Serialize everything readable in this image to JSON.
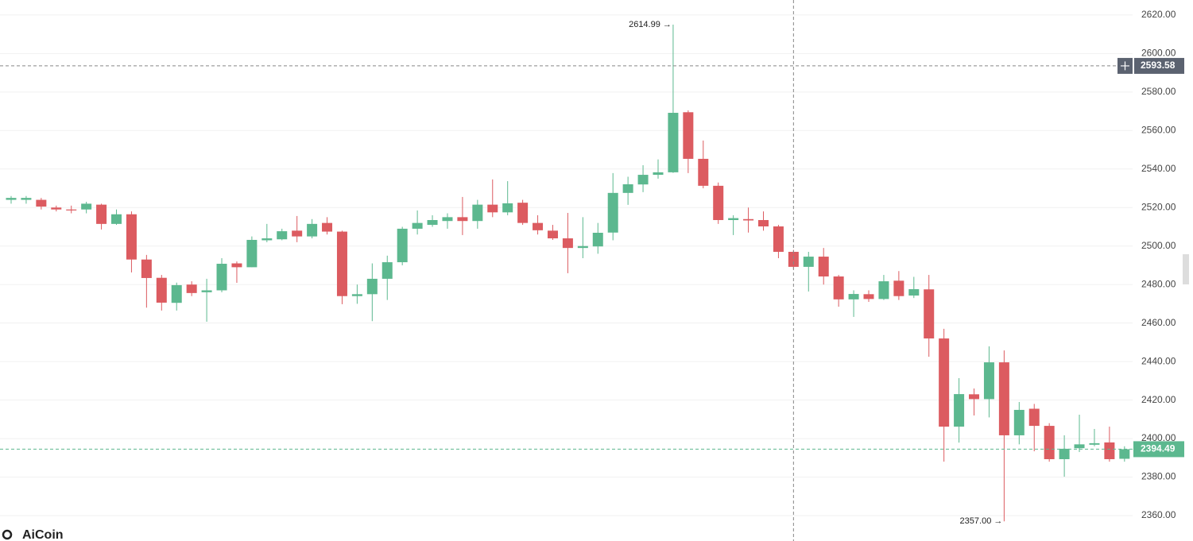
{
  "chart_data": {
    "type": "candlestick",
    "open": [
      2524,
      2524,
      2524,
      2520,
      2519,
      2519,
      2521.5,
      2511.5,
      2516.5,
      2493,
      2483.5,
      2470.5,
      2480,
      2476,
      2477,
      2491,
      2489,
      2503,
      2503.5,
      2508,
      2505,
      2512,
      2507.5,
      2474,
      2475,
      2483,
      2491.6,
      2509,
      2511,
      2513,
      2515,
      2513,
      2521.5,
      2517.5,
      2522.5,
      2512,
      2508,
      2504,
      2499,
      2499.8,
      2507,
      2527.6,
      2532,
      2537,
      2538.3,
      2569.5,
      2545.3,
      2531.3,
      2513.5,
      2514,
      2513.5,
      2510.2,
      2497,
      2489.2,
      2494.5,
      2484.2,
      2472.3,
      2475,
      2472.5,
      2482,
      2474.3,
      2477.5,
      2452,
      2406.2,
      2423,
      2420.5,
      2439.6,
      2401.7,
      2415.5,
      2406.6,
      2389.3,
      2395,
      2396.8,
      2398,
      2389.5
    ],
    "high": [
      2526,
      2526,
      2525,
      2521,
      2521,
      2523,
      2522,
      2519,
      2518,
      2495.4,
      2485,
      2481,
      2481.7,
      2483,
      2493.7,
      2492,
      2505,
      2511.5,
      2509,
      2515.6,
      2514,
      2515,
      2508,
      2480,
      2491,
      2495,
      2510,
      2518.5,
      2516,
      2517,
      2525.5,
      2524,
      2534.6,
      2533.7,
      2524,
      2516,
      2511,
      2517.2,
      2515,
      2512,
      2537.9,
      2536,
      2542,
      2545,
      2614.99,
      2570.5,
      2554.8,
      2533,
      2516,
      2520,
      2518,
      2511,
      2498,
      2497,
      2499,
      2485,
      2477,
      2477,
      2485,
      2487,
      2484,
      2485,
      2457,
      2431.4,
      2426,
      2447.9,
      2445.8,
      2419,
      2418,
      2408,
      2401.7,
      2412.4,
      2405,
      2406.2,
      2396
    ],
    "low": [
      2522,
      2522,
      2519,
      2518,
      2517,
      2517,
      2508.6,
      2511,
      2486.3,
      2468,
      2466.5,
      2466.5,
      2474,
      2460.7,
      2476,
      2480.9,
      2489,
      2502,
      2503,
      2502,
      2504,
      2506,
      2469.8,
      2470,
      2461,
      2472,
      2490,
      2506,
      2510,
      2509,
      2505.7,
      2509,
      2515,
      2516,
      2511,
      2506,
      2503.2,
      2485.9,
      2493.7,
      2496,
      2503,
      2521.4,
      2528,
      2535,
      2538,
      2537.9,
      2530,
      2511.5,
      2505.7,
      2507,
      2508,
      2493.7,
      2488,
      2476.4,
      2480,
      2468.5,
      2463.2,
      2471,
      2472,
      2472,
      2473,
      2442.5,
      2388,
      2397.9,
      2412,
      2411,
      2357,
      2397,
      2393.4,
      2388,
      2380.2,
      2393,
      2396,
      2388,
      2388
    ],
    "close": [
      2525,
      2525,
      2520.5,
      2519,
      2518.5,
      2522,
      2511.5,
      2516.5,
      2493,
      2483.4,
      2470.6,
      2479.7,
      2475.6,
      2477,
      2490.8,
      2489,
      2503.2,
      2504,
      2507.7,
      2505,
      2511.5,
      2507.5,
      2474,
      2475,
      2483,
      2491.6,
      2509,
      2512,
      2513.5,
      2515,
      2513,
      2521.5,
      2517.5,
      2522.2,
      2512,
      2508.2,
      2504,
      2499,
      2500,
      2506.9,
      2527.6,
      2532.1,
      2537,
      2538.3,
      2569.2,
      2545.3,
      2531.3,
      2513.5,
      2514.5,
      2513.3,
      2510.2,
      2497,
      2489.2,
      2494.5,
      2484.2,
      2472.3,
      2475.1,
      2472.5,
      2481.7,
      2474,
      2477.6,
      2452,
      2406.2,
      2423.1,
      2420.5,
      2439.6,
      2401.7,
      2414.9,
      2406.6,
      2389.3,
      2394.7,
      2397,
      2397.6,
      2389.3,
      2394.49
    ],
    "up_color": "#5cb88f",
    "down_color": "#dc5b60",
    "ylim": [
      2346.8,
      2627.8
    ],
    "yticks": [
      {
        "value": 2360,
        "label": "2360.00"
      },
      {
        "value": 2380,
        "label": "2380.00"
      },
      {
        "value": 2400,
        "label": "2400.00"
      },
      {
        "value": 2420,
        "label": "2420.00"
      },
      {
        "value": 2440,
        "label": "2440.00"
      },
      {
        "value": 2460,
        "label": "2460.00"
      },
      {
        "value": 2480,
        "label": "2480.00"
      },
      {
        "value": 2500,
        "label": "2500.00"
      },
      {
        "value": 2520,
        "label": "2520.00"
      },
      {
        "value": 2540,
        "label": "2540.00"
      },
      {
        "value": 2560,
        "label": "2560.00"
      },
      {
        "value": 2580,
        "label": "2580.00"
      },
      {
        "value": 2600,
        "label": "2600.00"
      },
      {
        "value": 2620,
        "label": "2620.00"
      }
    ],
    "grid": true,
    "max_label": "2614.99 →",
    "min_label": "2357.00 →",
    "crosshair": 2593.58,
    "crosshair_color": "#5b6270",
    "last_price": 2394.49,
    "watermark": "AiCoin"
  }
}
